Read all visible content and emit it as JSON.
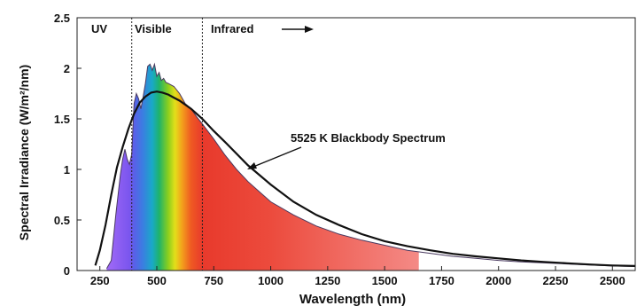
{
  "chart_data": {
    "type": "area",
    "xlabel": "Wavelength (nm)",
    "ylabel": "Spectral Irradiance (W/m²/nm)",
    "xlim": [
      150,
      2600
    ],
    "ylim": [
      0,
      2.5
    ],
    "x_ticks": [
      250,
      500,
      750,
      1000,
      1250,
      1500,
      1750,
      2000,
      2250,
      2500
    ],
    "x_tick_labels": [
      "250",
      "500",
      "750",
      "1000",
      "1250",
      "1500",
      "1750",
      "2000",
      "2250",
      "2500"
    ],
    "y_ticks": [
      0,
      0.5,
      1,
      1.5,
      2,
      2.5
    ],
    "y_tick_labels": [
      "0",
      "0.5",
      "1",
      "1.5",
      "2",
      "2.5"
    ],
    "grid": false,
    "regions": [
      {
        "label": "UV"
      },
      {
        "label": "Visible",
        "boundary_x": 390
      },
      {
        "label": "Infrared",
        "boundary_x": 700
      }
    ],
    "annotation": "5525 K Blackbody Spectrum",
    "series": [
      {
        "kind": "filled-spectrum",
        "fill_end_x": 1650,
        "x": [
          280,
          300,
          320,
          340,
          350,
          360,
          370,
          380,
          390,
          400,
          410,
          420,
          430,
          440,
          450,
          460,
          470,
          480,
          490,
          500,
          510,
          520,
          530,
          540,
          550,
          575,
          600,
          625,
          650,
          675,
          700,
          750,
          800,
          850,
          900,
          950,
          1000,
          1100,
          1200,
          1300,
          1400,
          1500,
          1600,
          1700,
          1800,
          1900,
          2000,
          2100,
          2200,
          2300,
          2400,
          2500,
          2600
        ],
        "y": [
          0.02,
          0.1,
          0.55,
          0.95,
          1.1,
          1.2,
          1.1,
          1.05,
          1.15,
          1.65,
          1.75,
          1.7,
          1.6,
          1.72,
          1.85,
          2.02,
          2.04,
          1.98,
          2.04,
          1.92,
          1.96,
          1.88,
          1.9,
          1.86,
          1.85,
          1.82,
          1.75,
          1.65,
          1.6,
          1.52,
          1.45,
          1.3,
          1.14,
          1.0,
          0.88,
          0.78,
          0.68,
          0.55,
          0.44,
          0.36,
          0.3,
          0.25,
          0.2,
          0.17,
          0.14,
          0.12,
          0.1,
          0.085,
          0.075,
          0.065,
          0.055,
          0.045,
          0.04
        ]
      },
      {
        "kind": "blackbody-curve",
        "x": [
          230,
          250,
          275,
          300,
          325,
          350,
          375,
          400,
          425,
          450,
          475,
          500,
          525,
          550,
          575,
          600,
          650,
          700,
          750,
          800,
          900,
          1000,
          1100,
          1200,
          1300,
          1400,
          1500,
          1600,
          1700,
          1800,
          1900,
          2000,
          2100,
          2200,
          2300,
          2400,
          2500,
          2600
        ],
        "y": [
          0.05,
          0.2,
          0.45,
          0.75,
          1.02,
          1.22,
          1.4,
          1.55,
          1.66,
          1.72,
          1.76,
          1.77,
          1.76,
          1.74,
          1.71,
          1.68,
          1.6,
          1.5,
          1.38,
          1.27,
          1.04,
          0.85,
          0.68,
          0.55,
          0.45,
          0.36,
          0.29,
          0.24,
          0.2,
          0.165,
          0.14,
          0.12,
          0.1,
          0.085,
          0.072,
          0.06,
          0.05,
          0.045
        ]
      }
    ]
  }
}
